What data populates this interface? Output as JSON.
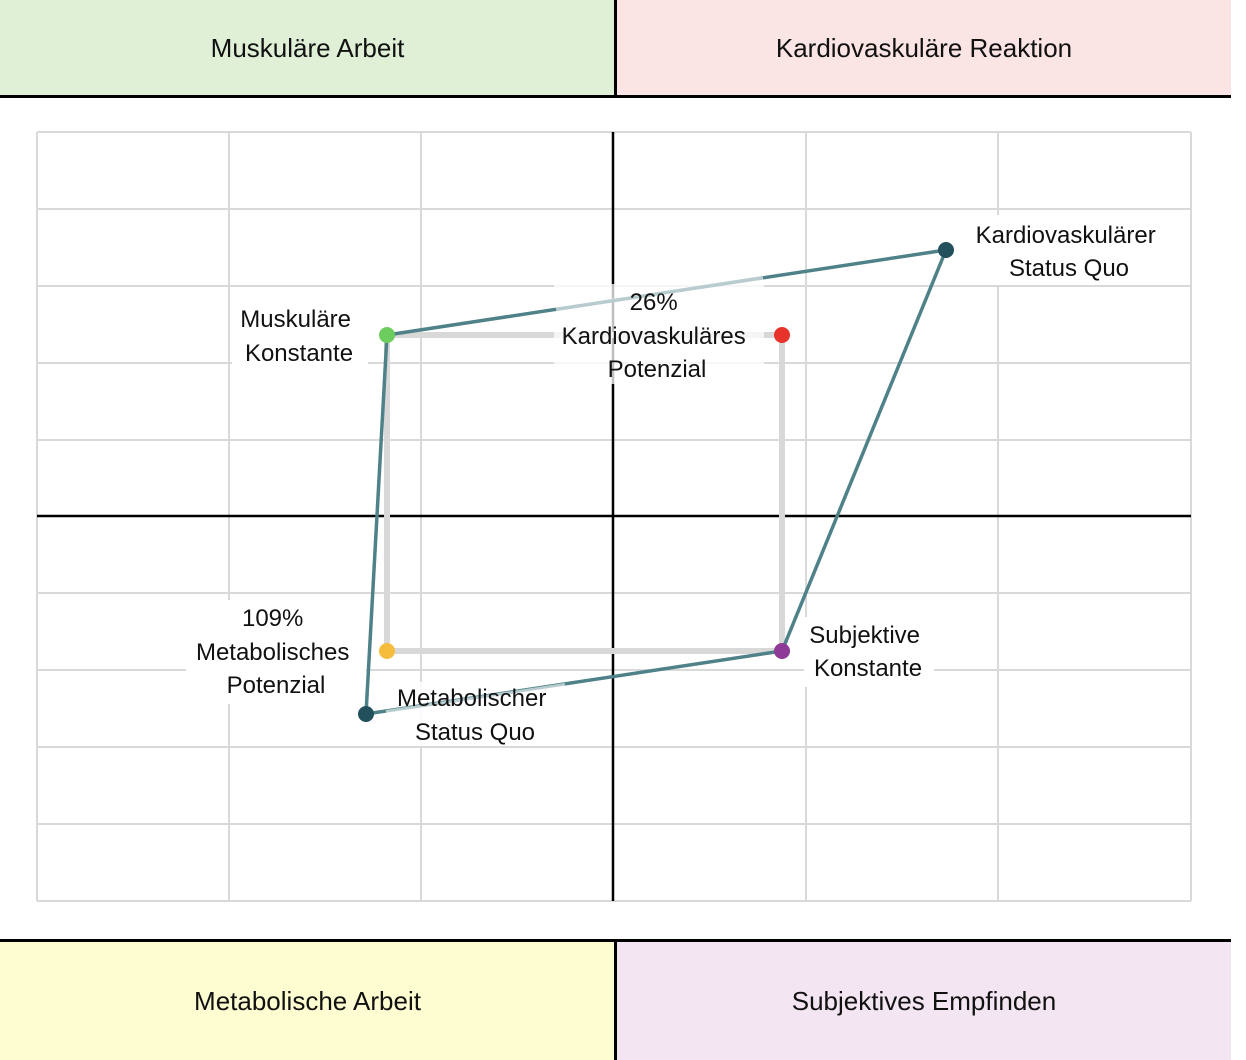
{
  "quadrants": {
    "top_left": {
      "label": "Muskuläre Arbeit",
      "color": "#dff0d6"
    },
    "top_right": {
      "label": "Kardiovaskuläre Reaktion",
      "color": "#fbe4e4"
    },
    "bottom_left": {
      "label": "Metabolische Arbeit",
      "color": "#fefdd2"
    },
    "bottom_right": {
      "label": "Subjektives Empfinden",
      "color": "#f3e5f1"
    }
  },
  "points": {
    "muscular_constant": {
      "lines": [
        "Muskuläre",
        "Konstante"
      ],
      "color": "#6dcc5e"
    },
    "cardio_status_quo": {
      "lines": [
        "Kardiovaskulärer",
        "Status Quo"
      ],
      "color": "#22505c"
    },
    "cardio_potential": {
      "lines": [
        "26%",
        "Kardiovaskuläres",
        "Potenzial"
      ],
      "color": "#e8332a"
    },
    "subjective_constant": {
      "lines": [
        "Subjektive",
        "Konstante"
      ],
      "color": "#8e3a96"
    },
    "metabolic_potential": {
      "lines": [
        "109%",
        "Metabolisches",
        "Potenzial"
      ],
      "color": "#f6bd3c"
    },
    "metabolic_status_quo": {
      "lines": [
        "Metabolischer",
        "Status Quo"
      ],
      "color": "#22505c"
    }
  },
  "colors": {
    "status_quo_polygon": "#4f8189",
    "constant_square": "#d8d8d8",
    "grid": "#d9d9d9",
    "axes": "#000000"
  }
}
